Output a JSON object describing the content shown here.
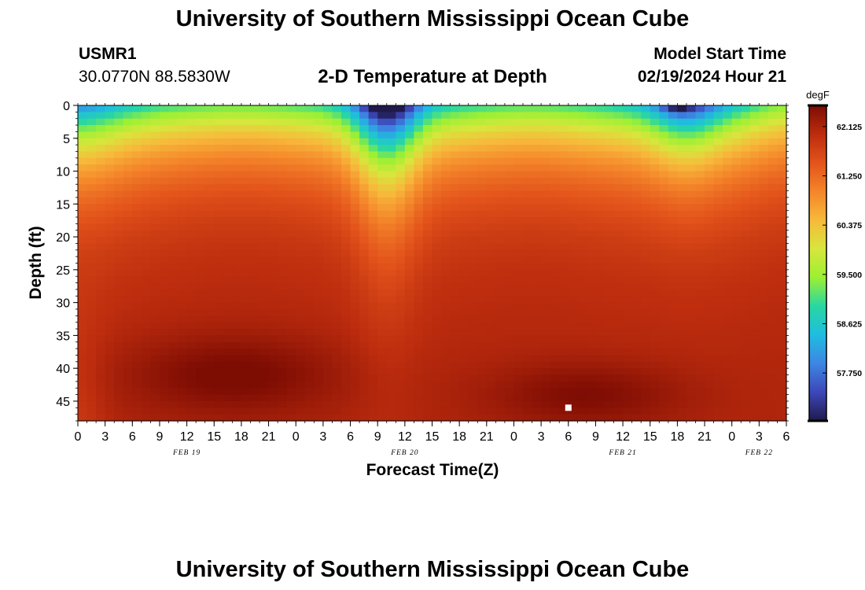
{
  "header": {
    "title": "University of Southern Mississippi Ocean Cube",
    "station_id": "USMR1",
    "coords": "30.0770N  88.5830W",
    "plot_title": "2-D Temperature at Depth",
    "start_label": "Model Start Time",
    "start_value": "02/19/2024 Hour 21"
  },
  "footer": {
    "title": "University of Southern Mississippi Ocean Cube"
  },
  "chart_data": {
    "type": "heatmap",
    "xlabel": "Forecast Time(Z)",
    "ylabel": "Depth (ft)",
    "xlim": [
      0,
      78
    ],
    "ylim": [
      48,
      0
    ],
    "y_inverted": true,
    "x_tick_labels": [
      "0",
      "3",
      "6",
      "9",
      "12",
      "15",
      "18",
      "21",
      "0",
      "3",
      "6",
      "9",
      "12",
      "15",
      "18",
      "21",
      "0",
      "3",
      "6",
      "9",
      "12",
      "15",
      "18",
      "21",
      "0",
      "3",
      "6"
    ],
    "y_ticks": [
      0,
      5,
      10,
      15,
      20,
      25,
      30,
      35,
      40,
      45
    ],
    "date_labels": [
      {
        "text": "FEB 19",
        "hour": 12
      },
      {
        "text": "FEB 20",
        "hour": 36
      },
      {
        "text": "FEB 21",
        "hour": 60
      },
      {
        "text": "FEB 22",
        "hour": 75
      }
    ],
    "colorbar": {
      "unit": "degF",
      "min": 56.9,
      "max": 62.5,
      "tick_labels": [
        "62.125",
        "61.250",
        "60.375",
        "59.500",
        "58.625",
        "57.750"
      ],
      "colormap": [
        "#1f1a4a",
        "#3d47b8",
        "#3d86e3",
        "#1fbde0",
        "#28d7a2",
        "#9cf033",
        "#d8e63c",
        "#f7b93b",
        "#f4852a",
        "#e3531b",
        "#bc2c0e",
        "#7d0c03"
      ]
    },
    "grid": false,
    "marker": {
      "hour": 54,
      "depth": 46,
      "color": "#ffffff"
    }
  }
}
